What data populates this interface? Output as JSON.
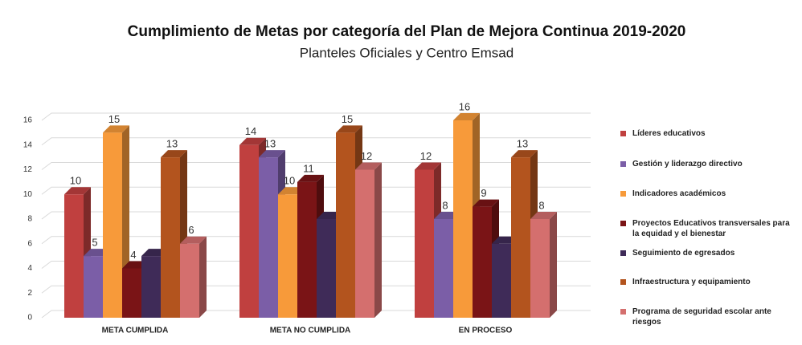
{
  "chart_data": {
    "type": "bar3d",
    "title": "Cumplimiento de Metas por categoría del Plan de Mejora Continua 2019-2020",
    "subtitle": "Planteles Oficiales y Centro Emsad",
    "categories": [
      "META CUMPLIDA",
      "META NO CUMPLIDA",
      "EN PROCESO"
    ],
    "series": [
      {
        "name": "Líderes educativos",
        "color": "#c0403f",
        "values": [
          10,
          14,
          12
        ]
      },
      {
        "name": "Gestión y liderazgo directivo",
        "color": "#7b5ea7",
        "values": [
          5,
          13,
          8
        ]
      },
      {
        "name": "Indicadores académicos",
        "color": "#f79a3a",
        "values": [
          15,
          10,
          16
        ]
      },
      {
        "name": "Proyectos Educativos transversales para la equidad y el bienestar",
        "color": "#7a1416",
        "values": [
          4,
          11,
          9
        ]
      },
      {
        "name": "Seguimiento de egresados",
        "color": "#3f2b58",
        "values": [
          5,
          8,
          6
        ],
        "data_labels": false
      },
      {
        "name": "Infraestructura y equipamiento",
        "color": "#b3541e",
        "values": [
          13,
          15,
          13
        ]
      },
      {
        "name": "Programa de seguridad escolar ante riesgos",
        "color": "#d46f6e",
        "values": [
          6,
          12,
          8
        ]
      }
    ],
    "ylim": [
      0,
      16
    ],
    "yticks": [
      0,
      2,
      4,
      6,
      8,
      10,
      12,
      14,
      16
    ],
    "grid": true,
    "legend": "right"
  }
}
